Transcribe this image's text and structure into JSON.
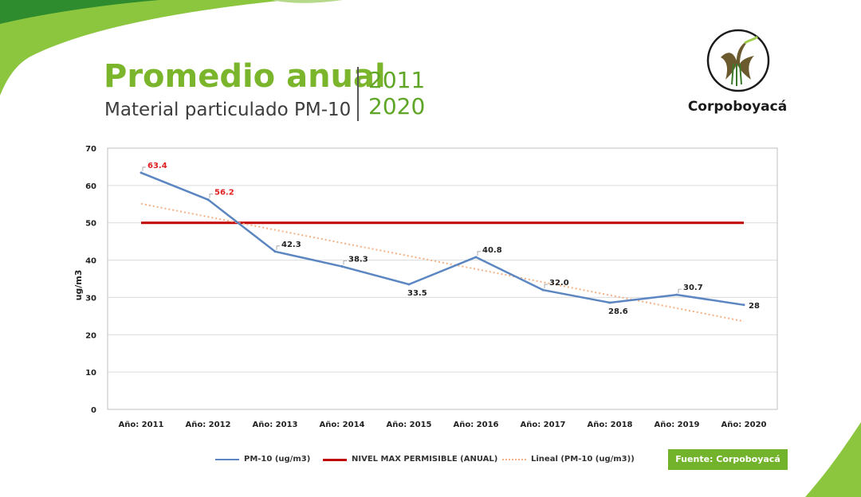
{
  "header": {
    "title": "Promedio anual",
    "subtitle": "Material particulado PM-10",
    "year_start": "2011",
    "year_end": "2020"
  },
  "logo": {
    "name": "Corpoboyacá",
    "icon": "plant-logo-icon"
  },
  "source_badge": "Fuente: Corpoboyacá",
  "colors": {
    "brand_green": "#7bb52c",
    "series_blue": "#5b86c1",
    "limit_red": "#c00000",
    "trend_orange": "#f4b183",
    "highlight_label": "#e02020"
  },
  "chart_data": {
    "type": "line",
    "categories": [
      "Año: 2011",
      "Año: 2012",
      "Año: 2013",
      "Año: 2014",
      "Año: 2015",
      "Año: 2016",
      "Año: 2017",
      "Año: 2018",
      "Año: 2019",
      "Año: 2020"
    ],
    "ylabel": "ug/m3",
    "ylim": [
      0,
      70
    ],
    "yticks": [
      0,
      10,
      20,
      30,
      40,
      50,
      60,
      70
    ],
    "grid": true,
    "legend_position": "bottom",
    "series": [
      {
        "name": "PM-10 (ug/m3)",
        "values": [
          63.4,
          56.2,
          42.3,
          38.3,
          33.5,
          40.8,
          32.0,
          28.6,
          30.7,
          28
        ],
        "labels": [
          "63.4",
          "56.2",
          "42.3",
          "38.3",
          "33.5",
          "40.8",
          "32.0",
          "28.6",
          "30.7",
          "28"
        ],
        "label_positions": [
          "above",
          "above",
          "above",
          "above",
          "below",
          "above",
          "above",
          "below",
          "above",
          "right"
        ],
        "highlighted": [
          true,
          true,
          false,
          false,
          false,
          false,
          false,
          false,
          false,
          false
        ]
      },
      {
        "name": "NIVEL MAX PERMISIBLE (ANUAL)",
        "values": [
          50,
          50,
          50,
          50,
          50,
          50,
          50,
          50,
          50,
          50
        ]
      },
      {
        "name": "Lineal (PM-10 (ug/m3))",
        "values": [
          55.1,
          51.6,
          48.1,
          44.6,
          41.1,
          37.6,
          34.1,
          30.6,
          27.1,
          23.6
        ]
      }
    ]
  }
}
